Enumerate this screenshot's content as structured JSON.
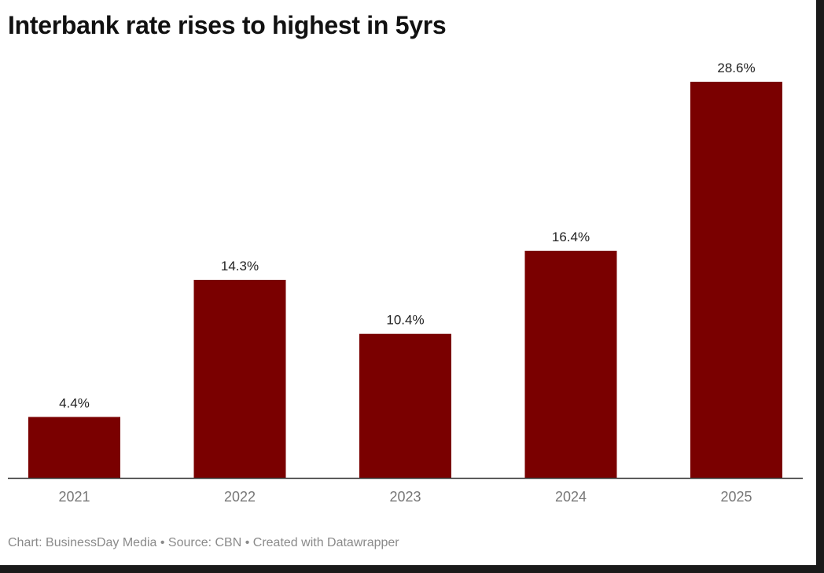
{
  "title": "Interbank rate rises to highest in 5yrs",
  "footer": "Chart: BusinessDay Media • Source: CBN • Created with Datawrapper",
  "chart_data": {
    "type": "bar",
    "title": "Interbank rate rises to highest in 5yrs",
    "categories": [
      "2021",
      "2022",
      "2023",
      "2024",
      "2025"
    ],
    "values": [
      4.4,
      14.3,
      10.4,
      16.4,
      28.6
    ],
    "labels": [
      "4.4%",
      "14.3%",
      "10.4%",
      "16.4%",
      "28.6%"
    ],
    "ylim": [
      0,
      28.6
    ],
    "xlabel": "",
    "ylabel": "",
    "grid": false,
    "bar_color": "#7a0000"
  }
}
